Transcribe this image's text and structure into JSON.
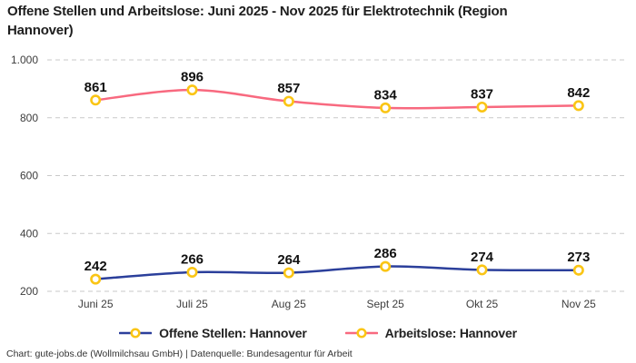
{
  "title": "Offene Stellen und Arbeitslose: Juni 2025 - Nov 2025 für Elektrotechnik (Region Hannover)",
  "footer": "Chart: gute-jobs.de (Wollmilchsau GmbH) | Datenquelle: Bundesagentur für Arbeit",
  "colors": {
    "background": "#ffffff",
    "title_text": "#1e1e1e",
    "grid": "#c9c9c9",
    "axis_text": "#3d3d3d",
    "data_label_text": "#111111",
    "marker_ring": "#fac515",
    "marker_fill": "#ffffff",
    "series_offene_stellen": "#2b3f9b",
    "series_arbeitslose": "#f8697f"
  },
  "chart_data": {
    "type": "line",
    "categories": [
      "Juni 25",
      "Juli 25",
      "Aug 25",
      "Sept 25",
      "Okt 25",
      "Nov 25"
    ],
    "series": [
      {
        "name": "Offene Stellen: Hannover",
        "color": "#2b3f9b",
        "values": [
          242,
          266,
          264,
          286,
          274,
          273
        ]
      },
      {
        "name": "Arbeitslose: Hannover",
        "color": "#f8697f",
        "values": [
          861,
          896,
          857,
          834,
          837,
          842
        ]
      }
    ],
    "y_ticks": [
      {
        "value": 200,
        "label": "200"
      },
      {
        "value": 400,
        "label": "400"
      },
      {
        "value": 600,
        "label": "600"
      },
      {
        "value": 800,
        "label": "800"
      },
      {
        "value": 1000,
        "label": "1.000"
      }
    ],
    "ylim": [
      200,
      1000
    ],
    "grid": "dashed-horizontal",
    "markers": "circle-ring",
    "marker_color": "#fac515",
    "data_labels": "above-points",
    "legend_position": "bottom-center"
  }
}
